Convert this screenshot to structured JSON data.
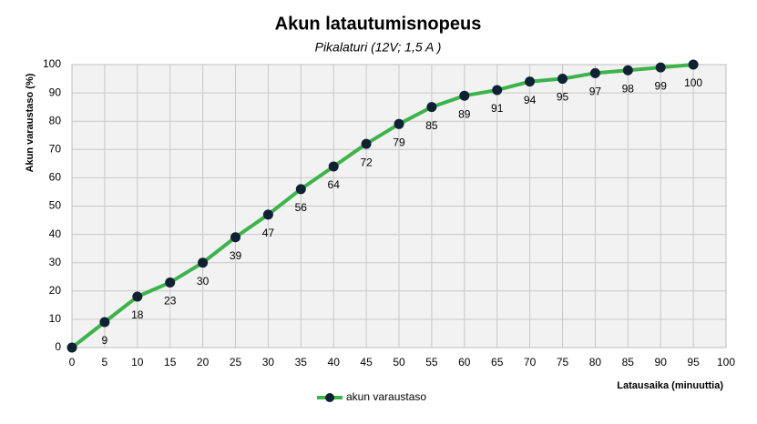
{
  "chart_data": {
    "type": "line",
    "title": "Akun latautumisnopeus",
    "subtitle": "Pikalaturi (12V; 1,5 A )",
    "x_label": "Latausaika (minuuttia)",
    "y_label": "Akun varaustaso (%)",
    "x": [
      0,
      5,
      10,
      15,
      20,
      25,
      30,
      35,
      40,
      45,
      50,
      55,
      60,
      65,
      70,
      75,
      80,
      85,
      90,
      95
    ],
    "series": [
      {
        "name": "akun varaustaso",
        "color": "#3cb44b",
        "marker_color": "#0f2233",
        "values": [
          0,
          9,
          18,
          23,
          30,
          39,
          47,
          56,
          64,
          72,
          79,
          85,
          89,
          91,
          94,
          95,
          97,
          98,
          99,
          100
        ],
        "value_labels": [
          null,
          "9",
          "18",
          "23",
          "30",
          "39",
          "47",
          "56",
          "64",
          "72",
          "79",
          "85",
          "89",
          "91",
          "94",
          "95",
          "97",
          "98",
          "99",
          "100"
        ]
      }
    ],
    "xlim": [
      0,
      100
    ],
    "xticks": [
      0,
      5,
      10,
      15,
      20,
      25,
      30,
      35,
      40,
      45,
      50,
      55,
      60,
      65,
      70,
      75,
      80,
      85,
      90,
      95,
      100
    ],
    "ylim": [
      0,
      100
    ],
    "yticks": [
      0,
      10,
      20,
      30,
      40,
      50,
      60,
      70,
      80,
      90,
      100
    ],
    "grid": true,
    "legend": "bottom"
  }
}
